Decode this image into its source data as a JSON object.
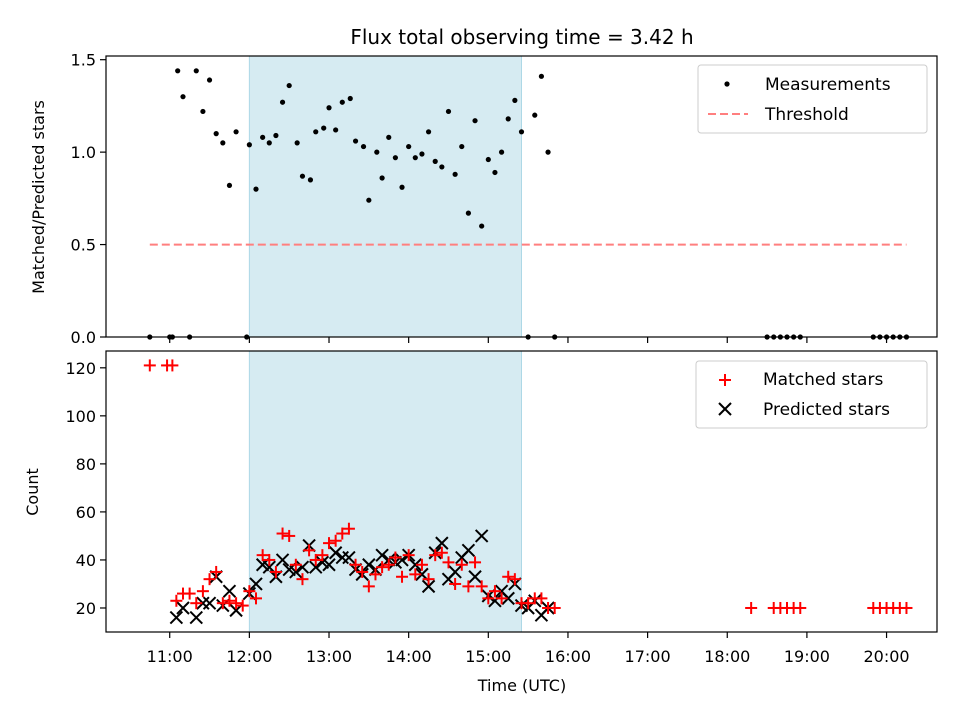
{
  "title": "Flux total observing time = 3.42 h",
  "colors": {
    "highlight": "#add8e6",
    "threshold": "#ff7f7f",
    "matched": "#ff0000",
    "predicted": "#000000"
  },
  "chart_data": [
    {
      "type": "scatter",
      "title": "Flux total observing time = 3.42 h",
      "ylabel": "Matched/Predicted stars",
      "xlim": [
        "10:12",
        "20:38"
      ],
      "ylim": [
        0,
        1.52
      ],
      "yticks": [
        "0.0",
        "0.5",
        "1.0",
        "1.5"
      ],
      "legend_position": "top-right",
      "shaded_interval": [
        "12:00",
        "15:25"
      ],
      "series": [
        {
          "name": "Measurements",
          "marker": "dot",
          "color": "#000000",
          "points": [
            [
              "10:45",
              0
            ],
            [
              "11:00",
              0
            ],
            [
              "11:02",
              0
            ],
            [
              "11:15",
              0
            ],
            [
              "11:58",
              0
            ],
            [
              "11:06",
              1.44
            ],
            [
              "11:10",
              1.3
            ],
            [
              "11:20",
              1.44
            ],
            [
              "11:25",
              1.22
            ],
            [
              "11:30",
              1.39
            ],
            [
              "11:35",
              1.1
            ],
            [
              "11:40",
              1.05
            ],
            [
              "11:45",
              0.82
            ],
            [
              "11:50",
              1.11
            ],
            [
              "12:00",
              1.04
            ],
            [
              "12:05",
              0.8
            ],
            [
              "12:10",
              1.08
            ],
            [
              "12:15",
              1.05
            ],
            [
              "12:20",
              1.09
            ],
            [
              "12:25",
              1.27
            ],
            [
              "12:30",
              1.36
            ],
            [
              "12:36",
              1.05
            ],
            [
              "12:40",
              0.87
            ],
            [
              "12:46",
              0.85
            ],
            [
              "12:50",
              1.11
            ],
            [
              "12:56",
              1.13
            ],
            [
              "13:00",
              1.24
            ],
            [
              "13:05",
              1.12
            ],
            [
              "13:10",
              1.27
            ],
            [
              "13:16",
              1.29
            ],
            [
              "13:20",
              1.06
            ],
            [
              "13:26",
              1.03
            ],
            [
              "13:30",
              0.74
            ],
            [
              "13:36",
              1.0
            ],
            [
              "13:40",
              0.86
            ],
            [
              "13:45",
              1.08
            ],
            [
              "13:50",
              0.97
            ],
            [
              "13:55",
              0.81
            ],
            [
              "14:00",
              1.03
            ],
            [
              "14:05",
              0.97
            ],
            [
              "14:10",
              0.99
            ],
            [
              "14:15",
              1.11
            ],
            [
              "14:20",
              0.95
            ],
            [
              "14:25",
              0.92
            ],
            [
              "14:30",
              1.22
            ],
            [
              "14:35",
              0.88
            ],
            [
              "14:40",
              1.03
            ],
            [
              "14:45",
              0.67
            ],
            [
              "14:50",
              1.17
            ],
            [
              "14:55",
              0.6
            ],
            [
              "15:00",
              0.96
            ],
            [
              "15:05",
              0.89
            ],
            [
              "15:10",
              1.0
            ],
            [
              "15:15",
              1.18
            ],
            [
              "15:20",
              1.28
            ],
            [
              "15:25",
              1.11
            ],
            [
              "15:30",
              0
            ],
            [
              "15:35",
              1.2
            ],
            [
              "15:40",
              1.41
            ],
            [
              "15:45",
              1.0
            ],
            [
              "15:50",
              0
            ],
            [
              "18:30",
              0
            ],
            [
              "18:35",
              0
            ],
            [
              "18:40",
              0
            ],
            [
              "18:45",
              0
            ],
            [
              "18:50",
              0
            ],
            [
              "18:55",
              0
            ],
            [
              "19:50",
              0
            ],
            [
              "19:55",
              0
            ],
            [
              "20:00",
              0
            ],
            [
              "20:05",
              0
            ],
            [
              "20:10",
              0
            ],
            [
              "20:15",
              0
            ]
          ]
        },
        {
          "name": "Threshold",
          "marker": "dashed-line",
          "color": "#ff7f7f",
          "x": [
            "10:45",
            "20:15"
          ],
          "y": [
            0.5,
            0.5
          ]
        }
      ]
    },
    {
      "type": "scatter",
      "xlabel": "Time (UTC)",
      "ylabel": "Count",
      "xlim": [
        "10:12",
        "20:38"
      ],
      "ylim": [
        10,
        127
      ],
      "yticks": [
        "20",
        "40",
        "60",
        "80",
        "100",
        "120"
      ],
      "xticks": [
        "11:00",
        "12:00",
        "13:00",
        "14:00",
        "15:00",
        "16:00",
        "17:00",
        "18:00",
        "19:00",
        "20:00"
      ],
      "legend_position": "top-right",
      "shaded_interval": [
        "12:00",
        "15:25"
      ],
      "series": [
        {
          "name": "Matched stars",
          "marker": "plus",
          "color": "#ff0000",
          "points": [
            [
              "10:45",
              121
            ],
            [
              "10:58",
              121
            ],
            [
              "11:02",
              121
            ],
            [
              "11:05",
              23
            ],
            [
              "11:10",
              26
            ],
            [
              "11:15",
              26
            ],
            [
              "11:20",
              22
            ],
            [
              "11:25",
              27
            ],
            [
              "11:30",
              32
            ],
            [
              "11:35",
              35
            ],
            [
              "11:40",
              22
            ],
            [
              "11:45",
              23
            ],
            [
              "11:50",
              22
            ],
            [
              "11:55",
              21
            ],
            [
              "12:00",
              27
            ],
            [
              "12:05",
              24
            ],
            [
              "12:10",
              42
            ],
            [
              "12:15",
              40
            ],
            [
              "12:20",
              35
            ],
            [
              "12:25",
              51
            ],
            [
              "12:30",
              50
            ],
            [
              "12:35",
              38
            ],
            [
              "12:40",
              32
            ],
            [
              "12:45",
              44
            ],
            [
              "12:50",
              40
            ],
            [
              "12:55",
              42
            ],
            [
              "13:00",
              47
            ],
            [
              "13:05",
              48
            ],
            [
              "13:10",
              51
            ],
            [
              "13:15",
              53
            ],
            [
              "13:20",
              38
            ],
            [
              "13:25",
              35
            ],
            [
              "13:30",
              29
            ],
            [
              "13:35",
              34
            ],
            [
              "13:40",
              37
            ],
            [
              "13:45",
              38
            ],
            [
              "13:50",
              41
            ],
            [
              "13:55",
              33
            ],
            [
              "14:00",
              42
            ],
            [
              "14:05",
              34
            ],
            [
              "14:10",
              38
            ],
            [
              "14:15",
              32
            ],
            [
              "14:20",
              42
            ],
            [
              "14:25",
              43
            ],
            [
              "14:30",
              39
            ],
            [
              "14:35",
              30
            ],
            [
              "14:40",
              38
            ],
            [
              "14:45",
              29
            ],
            [
              "14:50",
              39
            ],
            [
              "14:55",
              29
            ],
            [
              "15:00",
              24
            ],
            [
              "15:05",
              27
            ],
            [
              "15:10",
              24
            ],
            [
              "15:15",
              33
            ],
            [
              "15:20",
              32
            ],
            [
              "15:25",
              22
            ],
            [
              "15:30",
              22
            ],
            [
              "15:35",
              24
            ],
            [
              "15:40",
              24
            ],
            [
              "15:45",
              20
            ],
            [
              "15:50",
              20
            ],
            [
              "18:18",
              20
            ],
            [
              "18:35",
              20
            ],
            [
              "18:40",
              20
            ],
            [
              "18:45",
              20
            ],
            [
              "18:50",
              20
            ],
            [
              "18:55",
              20
            ],
            [
              "19:50",
              20
            ],
            [
              "19:55",
              20
            ],
            [
              "20:00",
              20
            ],
            [
              "20:05",
              20
            ],
            [
              "20:10",
              20
            ],
            [
              "20:15",
              20
            ]
          ]
        },
        {
          "name": "Predicted stars",
          "marker": "x",
          "color": "#000000",
          "points": [
            [
              "11:05",
              16
            ],
            [
              "11:10",
              20
            ],
            [
              "11:20",
              16
            ],
            [
              "11:25",
              22
            ],
            [
              "11:30",
              22
            ],
            [
              "11:35",
              33
            ],
            [
              "11:40",
              21
            ],
            [
              "11:45",
              27
            ],
            [
              "11:50",
              19
            ],
            [
              "12:00",
              26
            ],
            [
              "12:05",
              30
            ],
            [
              "12:10",
              38
            ],
            [
              "12:15",
              37
            ],
            [
              "12:20",
              33
            ],
            [
              "12:25",
              40
            ],
            [
              "12:30",
              36
            ],
            [
              "12:35",
              35
            ],
            [
              "12:40",
              37
            ],
            [
              "12:45",
              46
            ],
            [
              "12:50",
              37
            ],
            [
              "12:55",
              39
            ],
            [
              "13:00",
              38
            ],
            [
              "13:05",
              43
            ],
            [
              "13:10",
              41
            ],
            [
              "13:15",
              41
            ],
            [
              "13:20",
              36
            ],
            [
              "13:25",
              34
            ],
            [
              "13:30",
              38
            ],
            [
              "13:35",
              36
            ],
            [
              "13:40",
              42
            ],
            [
              "13:45",
              40
            ],
            [
              "13:50",
              39
            ],
            [
              "13:55",
              40
            ],
            [
              "14:00",
              42
            ],
            [
              "14:05",
              38
            ],
            [
              "14:10",
              34
            ],
            [
              "14:15",
              29
            ],
            [
              "14:20",
              43
            ],
            [
              "14:25",
              47
            ],
            [
              "14:30",
              32
            ],
            [
              "14:35",
              35
            ],
            [
              "14:40",
              41
            ],
            [
              "14:45",
              44
            ],
            [
              "14:50",
              33
            ],
            [
              "14:55",
              50
            ],
            [
              "15:00",
              25
            ],
            [
              "15:05",
              23
            ],
            [
              "15:10",
              27
            ],
            [
              "15:15",
              24
            ],
            [
              "15:20",
              30
            ],
            [
              "15:25",
              21
            ],
            [
              "15:30",
              20
            ],
            [
              "15:35",
              23
            ],
            [
              "15:40",
              17
            ],
            [
              "15:45",
              20
            ]
          ]
        }
      ]
    }
  ]
}
